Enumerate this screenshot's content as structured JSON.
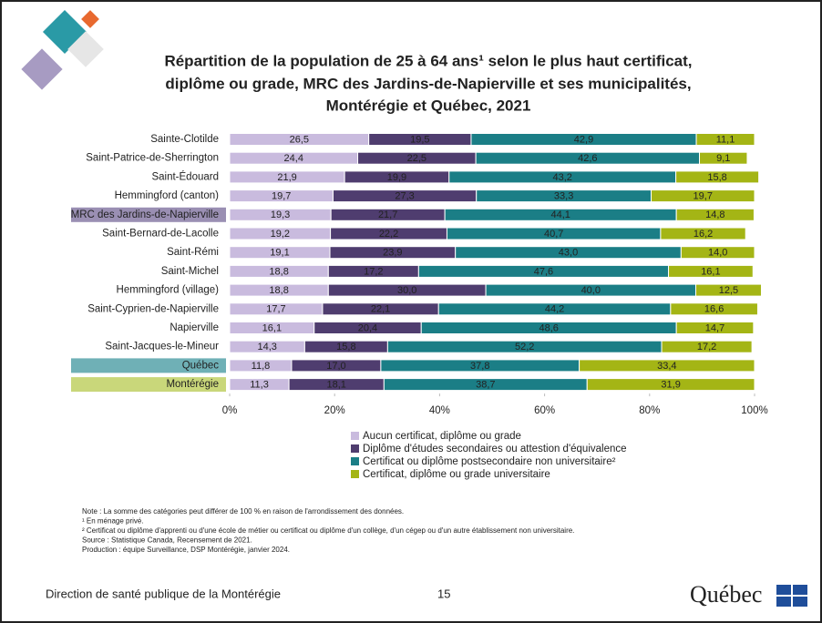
{
  "chart_data": {
    "type": "stacked-bar-horizontal",
    "title": [
      "Répartition de la population de 25 à 64 ans¹ selon le plus haut certificat,",
      "diplôme ou grade, MRC des Jardins-de-Napierville et ses municipalités,",
      "Montérégie et Québec, 2021"
    ],
    "categories": [
      "Sainte-Clotilde",
      "Saint-Patrice-de-Sherrington",
      "Saint-Édouard",
      "Hemmingford (canton)",
      "MRC des Jardins-de-Napierville",
      "Saint-Bernard-de-Lacolle",
      "Saint-Rémi",
      "Saint-Michel",
      "Hemmingford (village)",
      "Saint-Cyprien-de-Napierville",
      "Napierville",
      "Saint-Jacques-le-Mineur",
      "Québec",
      "Montérégie"
    ],
    "highlights": [
      {
        "index": 4,
        "color": "#9a8fb3"
      },
      {
        "index": 12,
        "color": "#6fb0b6"
      },
      {
        "index": 13,
        "color": "#c9d77a"
      }
    ],
    "series": [
      {
        "name": "Aucun certificat, diplôme ou grade",
        "color": "#c9bbde",
        "label_color": "#333333",
        "values": [
          26.5,
          24.4,
          21.9,
          19.7,
          19.3,
          19.2,
          19.1,
          18.8,
          18.8,
          17.7,
          16.1,
          14.3,
          11.8,
          11.3
        ],
        "value_labels": [
          "26,5",
          "24,4",
          "21,9",
          "19,7",
          "19,3",
          "19,2",
          "19,1",
          "18,8",
          "18,8",
          "17,7",
          "16,1",
          "14,3",
          "11,8",
          "11,3"
        ]
      },
      {
        "name": "Diplôme d'études secondaires ou attestion d'équivalence",
        "color": "#4f3d6f",
        "label_color": "#ffffff",
        "values": [
          19.5,
          22.5,
          19.9,
          27.3,
          21.7,
          22.2,
          23.9,
          17.2,
          30.0,
          22.1,
          20.4,
          15.8,
          17.0,
          18.1
        ],
        "value_labels": [
          "19,5",
          "22,5",
          "19,9",
          "27,3",
          "21,7",
          "22,2",
          "23,9",
          "17,2",
          "30,0",
          "22,1",
          "20,4",
          "15,8",
          "17,0",
          "18,1"
        ]
      },
      {
        "name": "Certificat ou diplôme postsecondaire non universitaire²",
        "color": "#1b7e86",
        "label_color": "#ffffff",
        "values": [
          42.9,
          42.6,
          43.2,
          33.3,
          44.1,
          40.7,
          43.0,
          47.6,
          40.0,
          44.2,
          48.6,
          52.2,
          37.8,
          38.7
        ],
        "value_labels": [
          "42,9",
          "42,6",
          "43,2",
          "33,3",
          "44,1",
          "40,7",
          "43,0",
          "47,6",
          "40,0",
          "44,2",
          "48,6",
          "52,2",
          "37,8",
          "38,7"
        ]
      },
      {
        "name": "Certificat, diplôme ou grade universitaire",
        "color": "#a4b515",
        "label_color": "#ffffff",
        "values": [
          11.1,
          9.1,
          15.8,
          19.7,
          14.8,
          16.2,
          14.0,
          16.1,
          12.5,
          16.6,
          14.7,
          17.2,
          33.4,
          31.9
        ],
        "value_labels": [
          "11,1",
          "9,1",
          "15,8",
          "19,7",
          "14,8",
          "16,2",
          "14,0",
          "16,1",
          "12,5",
          "16,6",
          "14,7",
          "17,2",
          "33,4",
          "31,9"
        ]
      }
    ],
    "xlim": [
      0,
      100
    ],
    "xticks": [
      {
        "value": 0,
        "label": "0%"
      },
      {
        "value": 20,
        "label": "20%"
      },
      {
        "value": 40,
        "label": "40%"
      },
      {
        "value": 60,
        "label": "60%"
      },
      {
        "value": 80,
        "label": "80%"
      },
      {
        "value": 100,
        "label": "100%"
      }
    ],
    "grid": false
  },
  "notes": [
    "Note : La somme des catégories peut différer de 100 % en raison de l'arrondissement des données.",
    "¹ En ménage privé.",
    "² Certificat ou diplôme d'apprenti ou d'une école de métier ou certificat ou diplôme d'un collège, d'un cégep ou d'un autre établissement non universitaire.",
    "Source : Statistique Canada, Recensement de 2021.",
    "Production : équipe Surveillance, DSP Montérégie, janvier 2024."
  ],
  "footer": {
    "organization": "Direction de santé publique de la Montérégie",
    "page": "15",
    "logo": "Québec"
  }
}
